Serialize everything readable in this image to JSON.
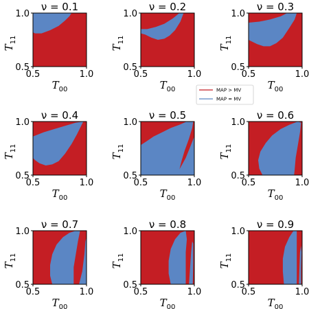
{
  "chart_data": {
    "type": "heatmap",
    "colors": {
      "MAP > MV": "#c41e24",
      "MAP = MV": "#5b86c4"
    },
    "legend": {
      "placement": "right-middle",
      "entries": [
        {
          "label": "MAP > MV",
          "color": "#c41e24"
        },
        {
          "label": "MAP = MV",
          "color": "#5b86c4"
        }
      ]
    },
    "xlabel": {
      "base": "T",
      "sub": "00"
    },
    "ylabel": {
      "base": "T",
      "sub": "11"
    },
    "xlim": [
      0.5,
      1.0
    ],
    "ylim": [
      0.5,
      1.0
    ],
    "xticks": [
      "0.5",
      "1.0"
    ],
    "yticks": [
      "0.5",
      "1.0"
    ],
    "panels": [
      {
        "nu": "0.1",
        "title": "ν = 0.1",
        "region_MAP_eq_MV": [
          [
            0.5,
            1.0
          ],
          [
            0.5,
            0.82
          ],
          [
            0.52,
            0.81
          ],
          [
            0.58,
            0.81
          ],
          [
            0.66,
            0.84
          ],
          [
            0.74,
            0.88
          ],
          [
            0.8,
            0.93
          ],
          [
            0.84,
            0.97
          ],
          [
            0.86,
            1.0
          ]
        ],
        "secondary_region": []
      },
      {
        "nu": "0.2",
        "title": "ν = 0.2",
        "region_MAP_eq_MV": [
          [
            0.5,
            0.85
          ],
          [
            0.56,
            0.85
          ],
          [
            0.64,
            0.87
          ],
          [
            0.72,
            0.9
          ],
          [
            0.8,
            0.95
          ],
          [
            0.86,
            1.0
          ],
          [
            0.9,
            1.0
          ],
          [
            0.87,
            0.92
          ],
          [
            0.82,
            0.84
          ],
          [
            0.77,
            0.79
          ],
          [
            0.72,
            0.76
          ],
          [
            0.66,
            0.75
          ],
          [
            0.6,
            0.77
          ],
          [
            0.54,
            0.8
          ],
          [
            0.5,
            0.81
          ]
        ],
        "secondary_region": []
      },
      {
        "nu": "0.3",
        "title": "ν = 0.3",
        "region_MAP_eq_MV": [
          [
            0.5,
            0.91
          ],
          [
            0.6,
            0.92
          ],
          [
            0.7,
            0.94
          ],
          [
            0.8,
            0.97
          ],
          [
            0.86,
            1.0
          ],
          [
            0.95,
            1.0
          ],
          [
            0.93,
            0.94
          ],
          [
            0.88,
            0.86
          ],
          [
            0.82,
            0.77
          ],
          [
            0.76,
            0.72
          ],
          [
            0.7,
            0.69
          ],
          [
            0.64,
            0.69
          ],
          [
            0.58,
            0.71
          ],
          [
            0.52,
            0.74
          ],
          [
            0.5,
            0.75
          ]
        ],
        "secondary_region": []
      },
      {
        "nu": "0.4",
        "title": "ν = 0.4",
        "region_MAP_eq_MV": [
          [
            0.5,
            0.86
          ],
          [
            0.6,
            0.9
          ],
          [
            0.7,
            0.93
          ],
          [
            0.8,
            0.96
          ],
          [
            0.9,
            0.99
          ],
          [
            0.97,
            1.0
          ],
          [
            0.95,
            0.96
          ],
          [
            0.91,
            0.88
          ],
          [
            0.86,
            0.79
          ],
          [
            0.8,
            0.7
          ],
          [
            0.74,
            0.63
          ],
          [
            0.68,
            0.6
          ],
          [
            0.62,
            0.59
          ],
          [
            0.56,
            0.61
          ],
          [
            0.52,
            0.64
          ],
          [
            0.5,
            0.66
          ]
        ],
        "secondary_region": []
      },
      {
        "nu": "0.5",
        "title": "ν = 0.5",
        "region_MAP_eq_MV": [
          [
            0.5,
            0.5
          ],
          [
            0.5,
            0.78
          ],
          [
            0.56,
            0.82
          ],
          [
            0.62,
            0.86
          ],
          [
            0.7,
            0.9
          ],
          [
            0.78,
            0.94
          ],
          [
            0.86,
            0.97
          ],
          [
            0.93,
            1.0
          ],
          [
            0.99,
            1.0
          ],
          [
            0.98,
            0.94
          ],
          [
            0.95,
            0.84
          ],
          [
            0.91,
            0.73
          ],
          [
            0.88,
            0.63
          ],
          [
            0.86,
            0.55
          ],
          [
            0.85,
            0.5
          ]
        ],
        "secondary_region": [
          [
            0.83,
            0.5
          ],
          [
            0.87,
            0.57
          ],
          [
            0.92,
            0.66
          ],
          [
            0.96,
            0.76
          ],
          [
            1.0,
            0.86
          ],
          [
            1.0,
            0.5
          ]
        ]
      },
      {
        "nu": "0.6",
        "title": "ν = 0.6",
        "region_MAP_eq_MV": [
          [
            0.63,
            0.5
          ],
          [
            0.6,
            0.56
          ],
          [
            0.59,
            0.64
          ],
          [
            0.61,
            0.72
          ],
          [
            0.66,
            0.8
          ],
          [
            0.72,
            0.87
          ],
          [
            0.8,
            0.93
          ],
          [
            0.88,
            0.97
          ],
          [
            0.96,
            1.0
          ],
          [
            0.99,
            0.99
          ],
          [
            0.98,
            0.9
          ],
          [
            0.96,
            0.78
          ],
          [
            0.94,
            0.66
          ],
          [
            0.93,
            0.55
          ],
          [
            0.925,
            0.5
          ]
        ],
        "secondary_region": []
      },
      {
        "nu": "0.7",
        "title": "ν = 0.7",
        "region_MAP_eq_MV": [
          [
            0.68,
            0.5
          ],
          [
            0.66,
            0.58
          ],
          [
            0.66,
            0.68
          ],
          [
            0.68,
            0.78
          ],
          [
            0.72,
            0.87
          ],
          [
            0.78,
            0.94
          ],
          [
            0.84,
            0.98
          ],
          [
            0.9,
            1.0
          ],
          [
            0.94,
            1.0
          ],
          [
            0.92,
            0.9
          ],
          [
            0.9,
            0.78
          ],
          [
            0.88,
            0.66
          ],
          [
            0.88,
            0.56
          ],
          [
            0.88,
            0.5
          ]
        ],
        "secondary_region": [
          [
            0.93,
            0.5
          ],
          [
            0.96,
            0.62
          ],
          [
            0.98,
            0.78
          ],
          [
            0.99,
            0.9
          ],
          [
            1.0,
            0.94
          ],
          [
            1.0,
            0.5
          ]
        ]
      },
      {
        "nu": "0.8",
        "title": "ν = 0.8",
        "region_MAP_eq_MV": [
          [
            0.78,
            0.5
          ],
          [
            0.76,
            0.6
          ],
          [
            0.76,
            0.72
          ],
          [
            0.78,
            0.83
          ],
          [
            0.82,
            0.92
          ],
          [
            0.87,
            0.98
          ],
          [
            0.92,
            1.0
          ],
          [
            0.93,
            0.92
          ],
          [
            0.92,
            0.8
          ],
          [
            0.92,
            0.67
          ],
          [
            0.92,
            0.56
          ],
          [
            0.92,
            0.5
          ]
        ],
        "secondary_region": [
          [
            0.95,
            0.5
          ],
          [
            0.96,
            0.65
          ],
          [
            0.97,
            0.8
          ],
          [
            0.98,
            0.9
          ],
          [
            0.99,
            0.88
          ],
          [
            0.99,
            0.7
          ],
          [
            0.985,
            0.5
          ]
        ]
      },
      {
        "nu": "0.9",
        "title": "ν = 0.9",
        "region_MAP_eq_MV": [
          [
            0.83,
            0.5
          ],
          [
            0.82,
            0.62
          ],
          [
            0.82,
            0.74
          ],
          [
            0.84,
            0.85
          ],
          [
            0.88,
            0.94
          ],
          [
            0.92,
            1.0
          ],
          [
            0.95,
            1.0
          ],
          [
            0.95,
            0.9
          ],
          [
            0.95,
            0.78
          ],
          [
            0.95,
            0.64
          ],
          [
            0.95,
            0.5
          ]
        ],
        "secondary_region": [
          [
            0.97,
            0.5
          ],
          [
            0.975,
            0.66
          ],
          [
            0.98,
            0.8
          ],
          [
            0.99,
            0.86
          ],
          [
            0.995,
            0.8
          ],
          [
            0.99,
            0.64
          ],
          [
            0.99,
            0.5
          ]
        ]
      }
    ]
  }
}
